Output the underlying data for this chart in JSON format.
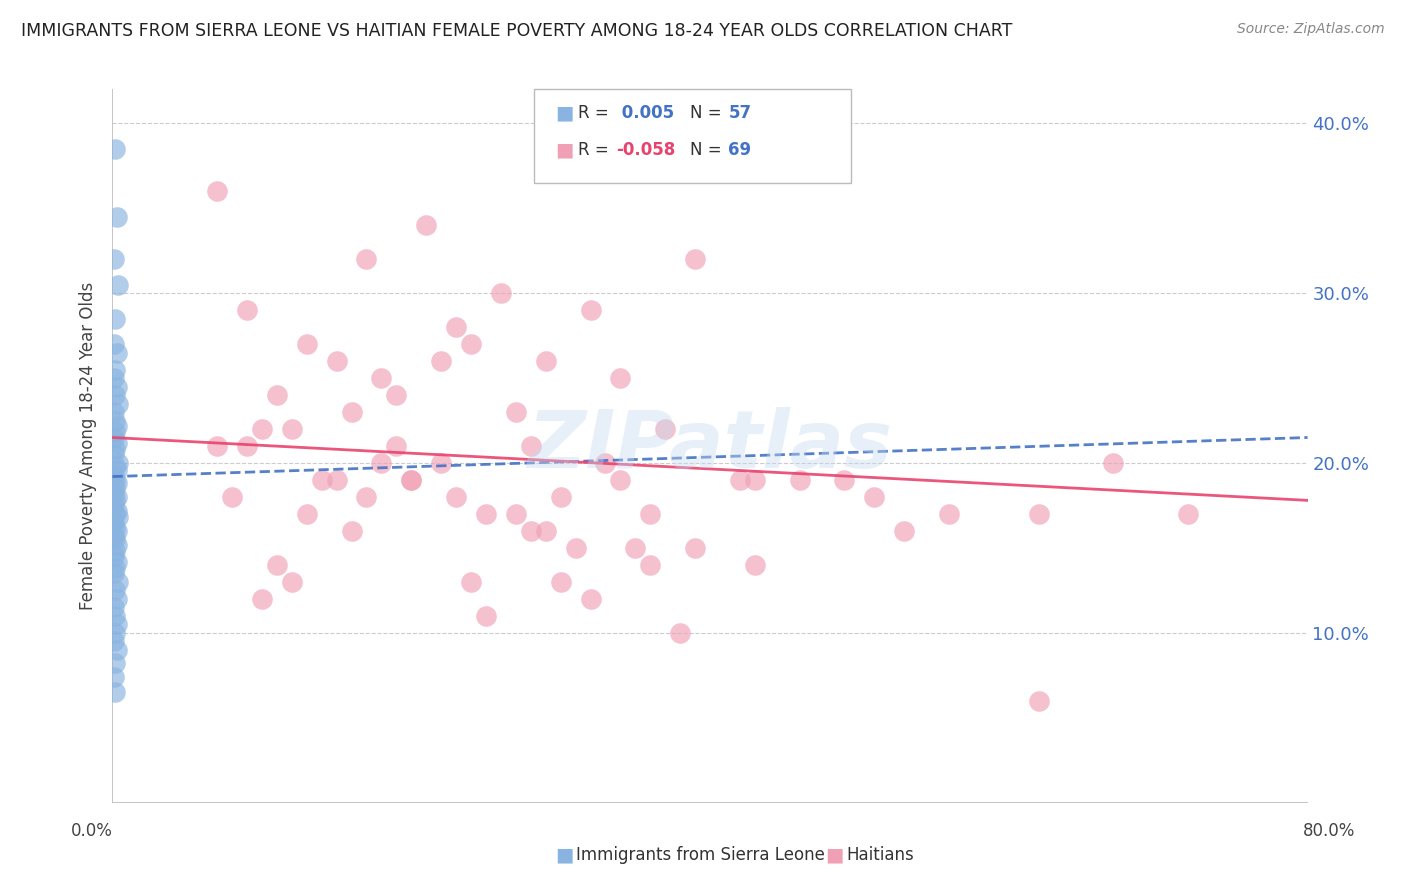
{
  "title": "IMMIGRANTS FROM SIERRA LEONE VS HAITIAN FEMALE POVERTY AMONG 18-24 YEAR OLDS CORRELATION CHART",
  "source": "Source: ZipAtlas.com",
  "ylabel": "Female Poverty Among 18-24 Year Olds",
  "xlim": [
    0.0,
    0.8
  ],
  "ylim": [
    0.0,
    0.42
  ],
  "yticks": [
    0.0,
    0.1,
    0.2,
    0.3,
    0.4
  ],
  "ytick_labels": [
    "",
    "10.0%",
    "20.0%",
    "30.0%",
    "40.0%"
  ],
  "xticks": [
    0.0,
    0.1,
    0.2,
    0.3,
    0.4,
    0.5,
    0.6,
    0.7,
    0.8
  ],
  "watermark": "ZIPatlas",
  "color_blue": "#89b3e0",
  "color_pink": "#f0a0b5",
  "color_blue_line": "#4472c4",
  "color_pink_line": "#e8436e",
  "color_grid": "#cccccc",
  "color_title": "#222222",
  "color_r_blue": "#4472c4",
  "color_r_pink": "#e8436e",
  "color_n": "#4472c4",
  "sierra_leone_x": [
    0.002,
    0.003,
    0.001,
    0.004,
    0.002,
    0.001,
    0.003,
    0.002,
    0.001,
    0.003,
    0.002,
    0.004,
    0.001,
    0.002,
    0.003,
    0.002,
    0.001,
    0.003,
    0.002,
    0.001,
    0.004,
    0.002,
    0.003,
    0.001,
    0.002,
    0.003,
    0.002,
    0.001,
    0.003,
    0.002,
    0.001,
    0.003,
    0.002,
    0.004,
    0.001,
    0.002,
    0.003,
    0.001,
    0.002,
    0.003,
    0.002,
    0.001,
    0.003,
    0.002,
    0.001,
    0.004,
    0.002,
    0.003,
    0.001,
    0.002,
    0.003,
    0.002,
    0.001,
    0.003,
    0.002,
    0.001,
    0.002
  ],
  "sierra_leone_y": [
    0.385,
    0.345,
    0.32,
    0.305,
    0.285,
    0.27,
    0.265,
    0.255,
    0.25,
    0.245,
    0.24,
    0.235,
    0.23,
    0.225,
    0.222,
    0.218,
    0.215,
    0.212,
    0.208,
    0.205,
    0.2,
    0.198,
    0.196,
    0.193,
    0.19,
    0.188,
    0.185,
    0.182,
    0.18,
    0.178,
    0.175,
    0.172,
    0.17,
    0.168,
    0.165,
    0.162,
    0.16,
    0.157,
    0.155,
    0.152,
    0.148,
    0.145,
    0.142,
    0.138,
    0.135,
    0.13,
    0.125,
    0.12,
    0.115,
    0.11,
    0.105,
    0.1,
    0.095,
    0.09,
    0.082,
    0.074,
    0.065
  ],
  "haitian_x": [
    0.07,
    0.17,
    0.09,
    0.21,
    0.15,
    0.26,
    0.11,
    0.23,
    0.32,
    0.37,
    0.13,
    0.18,
    0.24,
    0.29,
    0.34,
    0.19,
    0.27,
    0.39,
    0.1,
    0.22,
    0.16,
    0.2,
    0.28,
    0.33,
    0.42,
    0.12,
    0.3,
    0.36,
    0.43,
    0.07,
    0.08,
    0.14,
    0.17,
    0.22,
    0.25,
    0.29,
    0.35,
    0.09,
    0.13,
    0.19,
    0.23,
    0.27,
    0.31,
    0.15,
    0.11,
    0.18,
    0.24,
    0.28,
    0.32,
    0.36,
    0.16,
    0.2,
    0.25,
    0.3,
    0.34,
    0.38,
    0.1,
    0.12,
    0.46,
    0.51,
    0.39,
    0.43,
    0.62,
    0.56,
    0.49,
    0.53,
    0.67,
    0.72,
    0.62
  ],
  "haitian_y": [
    0.36,
    0.32,
    0.29,
    0.34,
    0.26,
    0.3,
    0.24,
    0.28,
    0.29,
    0.22,
    0.27,
    0.25,
    0.27,
    0.26,
    0.25,
    0.24,
    0.23,
    0.32,
    0.22,
    0.26,
    0.23,
    0.19,
    0.21,
    0.2,
    0.19,
    0.22,
    0.18,
    0.17,
    0.19,
    0.21,
    0.18,
    0.19,
    0.18,
    0.2,
    0.17,
    0.16,
    0.15,
    0.21,
    0.17,
    0.21,
    0.18,
    0.17,
    0.15,
    0.19,
    0.14,
    0.2,
    0.13,
    0.16,
    0.12,
    0.14,
    0.16,
    0.19,
    0.11,
    0.13,
    0.19,
    0.1,
    0.12,
    0.13,
    0.19,
    0.18,
    0.15,
    0.14,
    0.17,
    0.17,
    0.19,
    0.16,
    0.2,
    0.17,
    0.06
  ],
  "sl_line_x0": 0.0,
  "sl_line_x1": 0.8,
  "sl_line_y0": 0.192,
  "sl_line_y1": 0.215,
  "ht_line_x0": 0.0,
  "ht_line_x1": 0.8,
  "ht_line_y0": 0.215,
  "ht_line_y1": 0.178
}
